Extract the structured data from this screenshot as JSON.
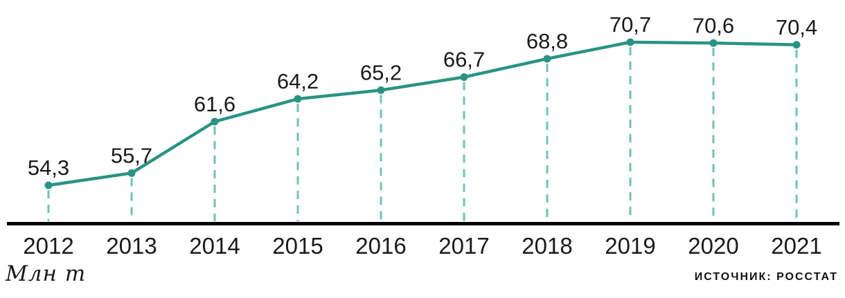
{
  "chart_data": {
    "type": "line",
    "categories": [
      "2012",
      "2013",
      "2014",
      "2015",
      "2016",
      "2017",
      "2018",
      "2019",
      "2020",
      "2021"
    ],
    "values": [
      54.3,
      55.7,
      61.6,
      64.2,
      65.2,
      66.7,
      68.8,
      70.7,
      70.6,
      70.4
    ],
    "value_labels": [
      "54,3",
      "55,7",
      "61,6",
      "64,2",
      "65,2",
      "66,7",
      "68,8",
      "70,7",
      "70,6",
      "70,4"
    ],
    "title": "",
    "xlabel": "",
    "ylabel": "Млн т",
    "ylim": [
      54.3,
      70.7
    ],
    "grid": false,
    "legend": "none",
    "decimal_separator": ",",
    "colors": {
      "line": "#2a9384",
      "marker": "#2a9384",
      "guide_dash": "#6ec3b4",
      "axis": "#000000",
      "text": "#1a1a1a"
    }
  },
  "unit_label": "Млн т",
  "source_label": "ИСТОЧНИК: РОССТАТ"
}
